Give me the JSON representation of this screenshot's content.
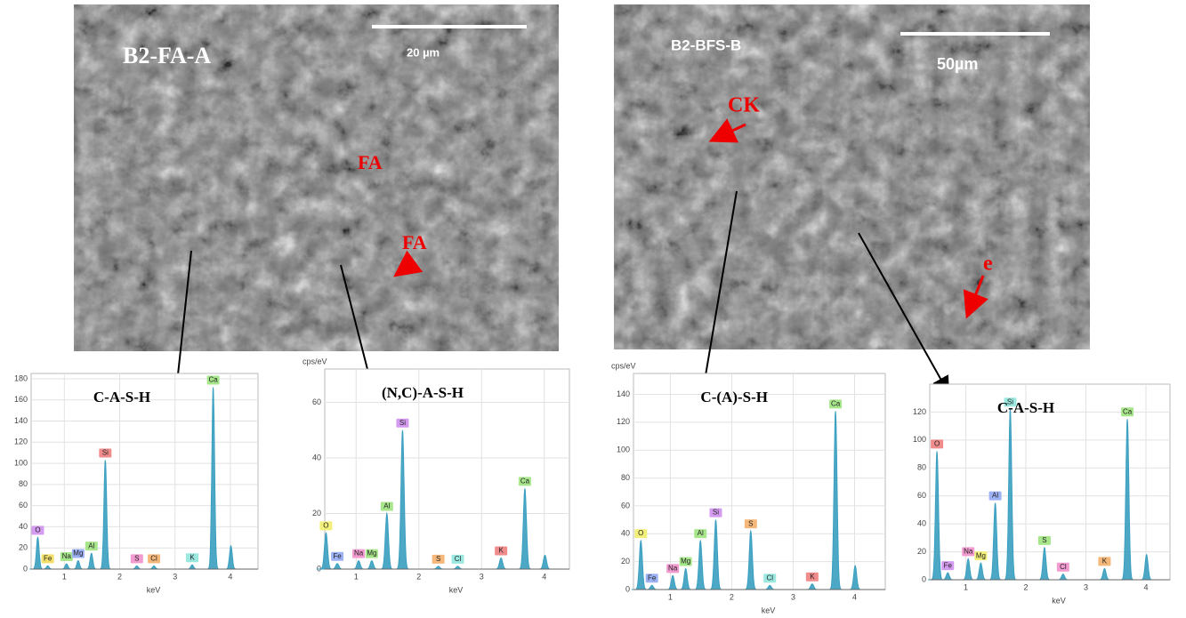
{
  "images": [
    {
      "label": "B2-FA-A",
      "scale": "20 µm",
      "annotations": [
        "FA",
        "FA"
      ]
    },
    {
      "label": "B2-BFS-B",
      "scale": "50µm",
      "annotations": [
        "CK",
        "e"
      ]
    }
  ],
  "chart_data": [
    {
      "type": "spectrum",
      "title": "C-A-S-H",
      "x_label": "keV",
      "xlim": [
        0.4,
        4.5
      ],
      "xticks": [
        1,
        2,
        3,
        4
      ],
      "ylim": [
        0,
        185
      ],
      "yticks": [
        0,
        20,
        40,
        60,
        80,
        100,
        120,
        140,
        160,
        180
      ],
      "grid": true,
      "color": "#3a9fc0",
      "labels": [
        "O",
        "Fe",
        "Na",
        "Mg",
        "Al",
        "Si",
        "S",
        "Cl",
        "K",
        "Ca",
        null
      ],
      "label_colors": [
        "#d59bf0",
        "#f2e06a",
        "#a8e68c",
        "#9db2f5",
        "#a8e68c",
        "#f08c8c",
        "#f29bd0",
        "#f5b87a",
        "#9be8e0",
        "#a8e68c",
        null
      ],
      "x": [
        0.52,
        0.7,
        1.04,
        1.25,
        1.49,
        1.74,
        2.31,
        2.62,
        3.31,
        3.69,
        4.01
      ],
      "values": [
        30,
        3,
        5,
        8,
        15,
        103,
        3,
        3,
        4,
        172,
        22
      ]
    },
    {
      "type": "spectrum",
      "title": "(N,C)-A-S-H",
      "x_label": "keV",
      "y_label": "cps/eV",
      "xlim": [
        0.5,
        4.4
      ],
      "xticks": [
        1,
        2,
        3,
        4
      ],
      "ylim": [
        0,
        72
      ],
      "yticks": [
        0,
        20,
        40,
        60
      ],
      "grid": true,
      "color": "#3a9fc0",
      "labels": [
        "O",
        "Fe",
        "Na",
        "Mg",
        "Al",
        "Si",
        "S",
        "Cl",
        "K",
        "Ca",
        null
      ],
      "label_colors": [
        "#f2f07a",
        "#9db2f5",
        "#f29bd0",
        "#a8e68c",
        "#a8e68c",
        "#d59bf0",
        "#f5b87a",
        "#9be8e0",
        "#f08c8c",
        "#a8e68c",
        null
      ],
      "x": [
        0.52,
        0.7,
        1.04,
        1.25,
        1.49,
        1.74,
        2.31,
        2.62,
        3.31,
        3.69,
        4.01
      ],
      "values": [
        13,
        2,
        3,
        3,
        20,
        50,
        1,
        1,
        4,
        29,
        5
      ]
    },
    {
      "type": "spectrum",
      "title": "C-(A)-S-H",
      "x_label": "keV",
      "y_label": "cps/eV",
      "xlim": [
        0.4,
        4.5
      ],
      "xticks": [
        1,
        2,
        3,
        4
      ],
      "ylim": [
        0,
        155
      ],
      "yticks": [
        0,
        20,
        40,
        60,
        80,
        100,
        120,
        140
      ],
      "grid": true,
      "color": "#3a9fc0",
      "labels": [
        "O",
        "Fe",
        "Na",
        "Mg",
        "Al",
        "Si",
        "S",
        "Cl",
        "K",
        "Ca",
        null
      ],
      "label_colors": [
        "#f2f07a",
        "#9db2f5",
        "#f29bd0",
        "#a8e68c",
        "#a8e68c",
        "#d59bf0",
        "#f5b87a",
        "#9be8e0",
        "#f08c8c",
        "#a8e68c",
        null
      ],
      "x": [
        0.52,
        0.7,
        1.04,
        1.25,
        1.49,
        1.74,
        2.31,
        2.62,
        3.31,
        3.69,
        4.01
      ],
      "values": [
        35,
        3,
        10,
        15,
        35,
        50,
        42,
        3,
        4,
        128,
        17
      ]
    },
    {
      "type": "spectrum",
      "title": "C-A-S-H",
      "x_label": "keV",
      "xlim": [
        0.4,
        4.4
      ],
      "xticks": [
        1,
        2,
        3,
        4
      ],
      "ylim": [
        0,
        140
      ],
      "yticks": [
        0,
        20,
        40,
        60,
        80,
        100,
        120
      ],
      "grid": true,
      "color": "#3a9fc0",
      "labels": [
        "O",
        "Fe",
        "Na",
        "Mg",
        "Al",
        "Si",
        "S",
        "Cl",
        "K",
        "Ca",
        null
      ],
      "label_colors": [
        "#f08c8c",
        "#d59bf0",
        "#f29bd0",
        "#f2f07a",
        "#9db2f5",
        "#9be8e0",
        "#a8e68c",
        "#f29bd0",
        "#f5b87a",
        "#a8e68c",
        null
      ],
      "x": [
        0.52,
        0.7,
        1.04,
        1.25,
        1.49,
        1.74,
        2.31,
        2.62,
        3.31,
        3.69,
        4.01
      ],
      "values": [
        92,
        5,
        15,
        12,
        55,
        122,
        23,
        4,
        8,
        115,
        18
      ]
    }
  ]
}
